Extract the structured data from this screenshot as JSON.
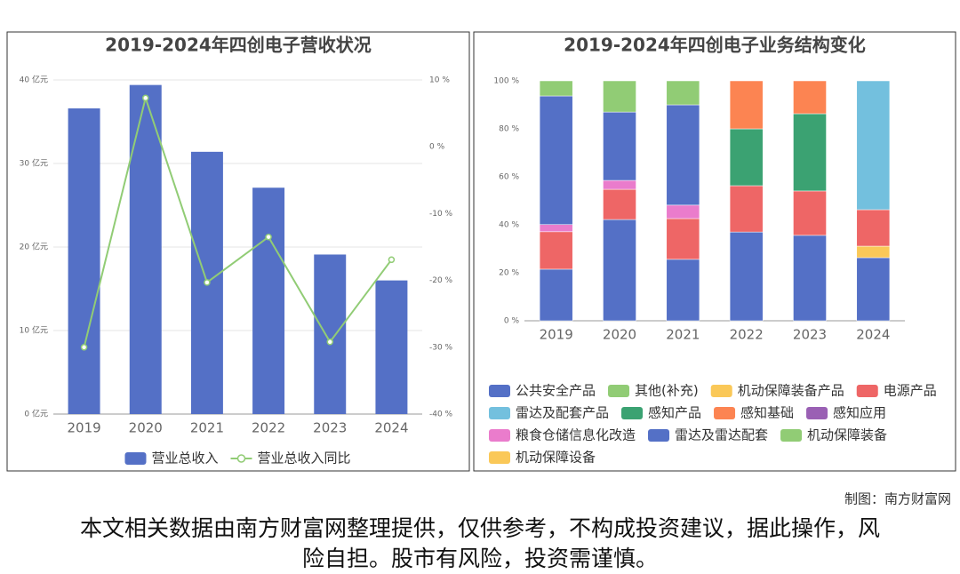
{
  "chart_data": [
    {
      "type": "bar",
      "title": "2019-2024年四创电子营收状况",
      "categories": [
        "2019",
        "2020",
        "2021",
        "2022",
        "2023",
        "2024"
      ],
      "series": [
        {
          "name": "营业总收入",
          "color": "#5470c6",
          "values": [
            36.6,
            39.4,
            31.4,
            27.1,
            19.1,
            16.0
          ]
        },
        {
          "name": "营业总收入同比",
          "type": "line",
          "axis": "y2",
          "color": "#91cc75",
          "values": [
            -30.0,
            7.3,
            -20.3,
            -13.5,
            -29.2,
            -16.9
          ]
        }
      ],
      "ylim": [
        0,
        40
      ],
      "yticks": [
        {
          "value": 0,
          "label": "0 亿元"
        },
        {
          "value": 10,
          "label": "10 亿元"
        },
        {
          "value": 20,
          "label": "20 亿元"
        },
        {
          "value": 30,
          "label": "30 亿元"
        },
        {
          "value": 40,
          "label": "40 亿元"
        }
      ],
      "y2lim": [
        -40,
        10
      ],
      "y2ticks": [
        {
          "value": -40,
          "label": "-40 %"
        },
        {
          "value": -30,
          "label": "-30 %"
        },
        {
          "value": -20,
          "label": "-20 %"
        },
        {
          "value": -10,
          "label": "-10 %"
        },
        {
          "value": 0,
          "label": "0 %"
        },
        {
          "value": 10,
          "label": "10 %"
        }
      ],
      "grid": true
    },
    {
      "type": "stacked_bar",
      "title": "2019-2024年四创电子业务结构变化",
      "categories": [
        "2019",
        "2020",
        "2021",
        "2022",
        "2023",
        "2024"
      ],
      "series": [
        {
          "name": "公共安全产品",
          "color": "#5470c6",
          "values": [
            21.5,
            42.2,
            25.6,
            37.0,
            35.6,
            26.3
          ]
        },
        {
          "name": "其他(补充)",
          "color": "#91cc75",
          "values": [
            null,
            null,
            null,
            null,
            null,
            null
          ]
        },
        {
          "name": "机动保障装备产品",
          "color": "#fac858",
          "values": [
            null,
            null,
            null,
            null,
            null,
            4.8
          ]
        },
        {
          "name": "电源产品",
          "color": "#ee6666",
          "values": [
            15.6,
            12.6,
            17.0,
            19.3,
            18.5,
            15.2
          ]
        },
        {
          "name": "雷达及配套产品",
          "color": "#73c0de",
          "values": [
            null,
            null,
            null,
            null,
            null,
            53.7
          ]
        },
        {
          "name": "感知产品",
          "color": "#3ba272",
          "values": [
            null,
            null,
            null,
            23.7,
            32.2,
            null
          ]
        },
        {
          "name": "感知基础",
          "color": "#fc8452",
          "values": [
            null,
            null,
            null,
            20.0,
            13.7,
            null
          ]
        },
        {
          "name": "感知应用",
          "color": "#9a60b4",
          "values": [
            null,
            null,
            null,
            null,
            null,
            null
          ]
        },
        {
          "name": "粮食仓储信息化改造",
          "color": "#ea7ccc",
          "values": [
            3.0,
            3.7,
            5.6,
            null,
            null,
            null
          ]
        },
        {
          "name": "雷达及雷达配套",
          "color": "#5470c6",
          "values": [
            53.6,
            28.5,
            41.8,
            null,
            null,
            null
          ]
        },
        {
          "name": "机动保障装备",
          "color": "#91cc75",
          "values": [
            6.3,
            13.0,
            10.0,
            null,
            null,
            null
          ]
        },
        {
          "name": "机动保障设备",
          "color": "#fac858",
          "values": [
            null,
            null,
            null,
            null,
            null,
            null
          ]
        }
      ],
      "ylim": [
        0,
        100
      ],
      "yticks": [
        {
          "value": 0,
          "label": "0 %"
        },
        {
          "value": 20,
          "label": "20 %"
        },
        {
          "value": 40,
          "label": "40 %"
        },
        {
          "value": 60,
          "label": "60 %"
        },
        {
          "value": 80,
          "label": "80 %"
        },
        {
          "value": 100,
          "label": "100 %"
        }
      ],
      "grid": false
    }
  ],
  "credit": "制图：南方财富网",
  "disclaimer": "本文相关数据由南方财富网整理提供，仅供参考，不构成投资建议，据此操作，风险自担。股市有风险，投资需谨慎。"
}
